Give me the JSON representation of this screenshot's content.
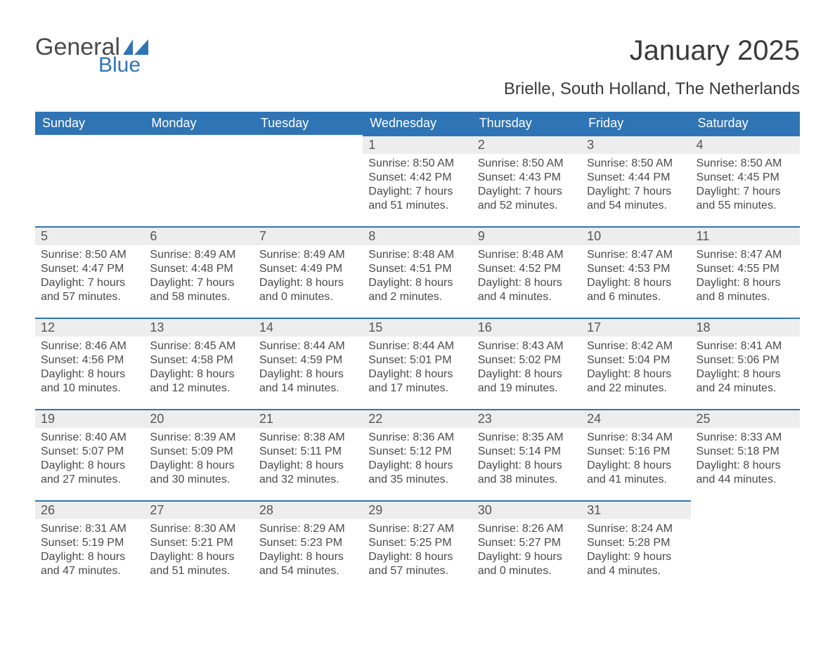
{
  "colors": {
    "header_bg": "#2f74b5",
    "header_text": "#ffffff",
    "daynum_bg": "#ededed",
    "daynum_border": "#2f74b5",
    "body_text": "#4a4a4a",
    "logo_blue": "#2f74b5",
    "page_bg": "#ffffff"
  },
  "logo": {
    "part1": "General",
    "part2": "Blue"
  },
  "title": "January 2025",
  "location": "Brielle, South Holland, The Netherlands",
  "weekdays": [
    "Sunday",
    "Monday",
    "Tuesday",
    "Wednesday",
    "Thursday",
    "Friday",
    "Saturday"
  ],
  "layout": {
    "weeks": 5,
    "first_day_column_index": 3,
    "days_in_month": 31
  },
  "days": {
    "1": {
      "sunrise": "8:50 AM",
      "sunset": "4:42 PM",
      "daylight_h": 7,
      "daylight_m": 51
    },
    "2": {
      "sunrise": "8:50 AM",
      "sunset": "4:43 PM",
      "daylight_h": 7,
      "daylight_m": 52
    },
    "3": {
      "sunrise": "8:50 AM",
      "sunset": "4:44 PM",
      "daylight_h": 7,
      "daylight_m": 54
    },
    "4": {
      "sunrise": "8:50 AM",
      "sunset": "4:45 PM",
      "daylight_h": 7,
      "daylight_m": 55
    },
    "5": {
      "sunrise": "8:50 AM",
      "sunset": "4:47 PM",
      "daylight_h": 7,
      "daylight_m": 57
    },
    "6": {
      "sunrise": "8:49 AM",
      "sunset": "4:48 PM",
      "daylight_h": 7,
      "daylight_m": 58
    },
    "7": {
      "sunrise": "8:49 AM",
      "sunset": "4:49 PM",
      "daylight_h": 8,
      "daylight_m": 0
    },
    "8": {
      "sunrise": "8:48 AM",
      "sunset": "4:51 PM",
      "daylight_h": 8,
      "daylight_m": 2
    },
    "9": {
      "sunrise": "8:48 AM",
      "sunset": "4:52 PM",
      "daylight_h": 8,
      "daylight_m": 4
    },
    "10": {
      "sunrise": "8:47 AM",
      "sunset": "4:53 PM",
      "daylight_h": 8,
      "daylight_m": 6
    },
    "11": {
      "sunrise": "8:47 AM",
      "sunset": "4:55 PM",
      "daylight_h": 8,
      "daylight_m": 8
    },
    "12": {
      "sunrise": "8:46 AM",
      "sunset": "4:56 PM",
      "daylight_h": 8,
      "daylight_m": 10
    },
    "13": {
      "sunrise": "8:45 AM",
      "sunset": "4:58 PM",
      "daylight_h": 8,
      "daylight_m": 12
    },
    "14": {
      "sunrise": "8:44 AM",
      "sunset": "4:59 PM",
      "daylight_h": 8,
      "daylight_m": 14
    },
    "15": {
      "sunrise": "8:44 AM",
      "sunset": "5:01 PM",
      "daylight_h": 8,
      "daylight_m": 17
    },
    "16": {
      "sunrise": "8:43 AM",
      "sunset": "5:02 PM",
      "daylight_h": 8,
      "daylight_m": 19
    },
    "17": {
      "sunrise": "8:42 AM",
      "sunset": "5:04 PM",
      "daylight_h": 8,
      "daylight_m": 22
    },
    "18": {
      "sunrise": "8:41 AM",
      "sunset": "5:06 PM",
      "daylight_h": 8,
      "daylight_m": 24
    },
    "19": {
      "sunrise": "8:40 AM",
      "sunset": "5:07 PM",
      "daylight_h": 8,
      "daylight_m": 27
    },
    "20": {
      "sunrise": "8:39 AM",
      "sunset": "5:09 PM",
      "daylight_h": 8,
      "daylight_m": 30
    },
    "21": {
      "sunrise": "8:38 AM",
      "sunset": "5:11 PM",
      "daylight_h": 8,
      "daylight_m": 32
    },
    "22": {
      "sunrise": "8:36 AM",
      "sunset": "5:12 PM",
      "daylight_h": 8,
      "daylight_m": 35
    },
    "23": {
      "sunrise": "8:35 AM",
      "sunset": "5:14 PM",
      "daylight_h": 8,
      "daylight_m": 38
    },
    "24": {
      "sunrise": "8:34 AM",
      "sunset": "5:16 PM",
      "daylight_h": 8,
      "daylight_m": 41
    },
    "25": {
      "sunrise": "8:33 AM",
      "sunset": "5:18 PM",
      "daylight_h": 8,
      "daylight_m": 44
    },
    "26": {
      "sunrise": "8:31 AM",
      "sunset": "5:19 PM",
      "daylight_h": 8,
      "daylight_m": 47
    },
    "27": {
      "sunrise": "8:30 AM",
      "sunset": "5:21 PM",
      "daylight_h": 8,
      "daylight_m": 51
    },
    "28": {
      "sunrise": "8:29 AM",
      "sunset": "5:23 PM",
      "daylight_h": 8,
      "daylight_m": 54
    },
    "29": {
      "sunrise": "8:27 AM",
      "sunset": "5:25 PM",
      "daylight_h": 8,
      "daylight_m": 57
    },
    "30": {
      "sunrise": "8:26 AM",
      "sunset": "5:27 PM",
      "daylight_h": 9,
      "daylight_m": 0
    },
    "31": {
      "sunrise": "8:24 AM",
      "sunset": "5:28 PM",
      "daylight_h": 9,
      "daylight_m": 4
    }
  },
  "labels": {
    "sunrise_prefix": "Sunrise: ",
    "sunset_prefix": "Sunset: ",
    "daylight_prefix": "Daylight: ",
    "hours_word": " hours",
    "and_word": "and ",
    "minutes_word": " minutes."
  }
}
